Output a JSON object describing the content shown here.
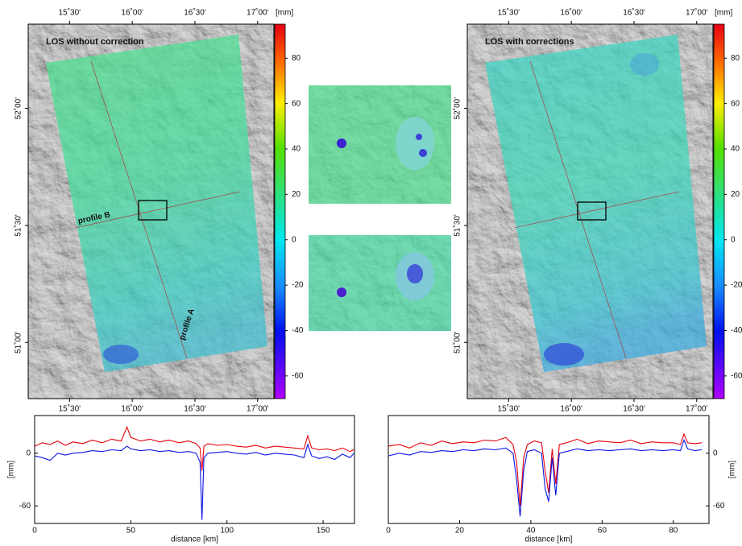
{
  "chart_data": [
    {
      "type": "map",
      "title": "LOS without correction",
      "xlim": [
        15.17,
        17.13
      ],
      "xticks": [
        {
          "value": 15.5,
          "label": "15˚30'"
        },
        {
          "value": 16,
          "label": "16˚00'"
        },
        {
          "value": 16.5,
          "label": "16˚30'"
        },
        {
          "value": 17,
          "label": "17˚00'"
        }
      ],
      "ylim": [
        50.76,
        52.36
      ],
      "yticks": [
        {
          "value": 52,
          "label": "52˚00'"
        },
        {
          "value": 51.5,
          "label": "51˚30'"
        },
        {
          "value": 51,
          "label": "51˚00'"
        }
      ],
      "colorbar": {
        "label": "[mm]",
        "lim": [
          -70,
          95
        ],
        "ticks": [
          80,
          60,
          40,
          20,
          0,
          -20,
          -40,
          -60
        ]
      },
      "annotations": [
        "profile A",
        "profile B"
      ]
    },
    {
      "type": "map",
      "title": "LOS with corrections",
      "xlim": [
        15.17,
        17.13
      ],
      "xticks": [
        {
          "value": 15.5,
          "label": "15˚30'"
        },
        {
          "value": 16,
          "label": "16˚00'"
        },
        {
          "value": 16.5,
          "label": "16˚30'"
        },
        {
          "value": 17,
          "label": "17˚00'"
        }
      ],
      "ylim": [
        50.76,
        52.36
      ],
      "yticks": [
        {
          "value": 52,
          "label": "52˚00'"
        },
        {
          "value": 51.5,
          "label": "51˚30'"
        },
        {
          "value": 51,
          "label": "51˚00'"
        }
      ],
      "colorbar": {
        "label": "[mm]",
        "lim": [
          -70,
          95
        ],
        "ticks": [
          80,
          60,
          40,
          20,
          0,
          -20,
          -40,
          -60
        ]
      }
    },
    {
      "type": "line",
      "xlabel": "distance [km]",
      "ylabel": "[mm]",
      "xlim": [
        0,
        166.3
      ],
      "xticks": [
        0,
        50,
        100,
        150
      ],
      "ylim": [
        -80,
        43
      ],
      "yticks": [
        0,
        -60
      ],
      "x": [
        0,
        4,
        8,
        12,
        16,
        20,
        25,
        30,
        35,
        40,
        45,
        48,
        50,
        55,
        60,
        65,
        70,
        75,
        80,
        84,
        86,
        87,
        88,
        90,
        95,
        100,
        105,
        110,
        115,
        120,
        125,
        130,
        135,
        140,
        142,
        144,
        148,
        152,
        156,
        160,
        164,
        166
      ],
      "series": [
        {
          "color": "#e8000b",
          "values": [
            8,
            12,
            10,
            14,
            9,
            13,
            11,
            15,
            12,
            16,
            14,
            30,
            18,
            14,
            16,
            13,
            15,
            12,
            14,
            11,
            6,
            -20,
            8,
            11,
            9,
            10,
            8,
            7,
            9,
            6,
            8,
            7,
            6,
            5,
            20,
            6,
            4,
            5,
            3,
            6,
            2,
            4
          ]
        },
        {
          "color": "#0a14e6",
          "values": [
            -3,
            -5,
            -8,
            0,
            -2,
            0,
            1,
            3,
            2,
            4,
            3,
            8,
            5,
            3,
            4,
            2,
            3,
            1,
            2,
            0,
            -10,
            -76,
            -5,
            0,
            1,
            2,
            0,
            -1,
            1,
            -2,
            0,
            -1,
            -2,
            -5,
            10,
            -3,
            -6,
            -4,
            -7,
            -1,
            -5,
            0
          ]
        }
      ]
    },
    {
      "type": "line",
      "xlabel": "distance [km]",
      "ylabel": "[mm]",
      "xlim": [
        0,
        90
      ],
      "xticks": [
        0,
        20,
        40,
        60,
        80
      ],
      "ylim": [
        -80,
        43
      ],
      "yticks": [
        0,
        -60
      ],
      "x": [
        0,
        3,
        6,
        9,
        12,
        15,
        18,
        21,
        24,
        27,
        30,
        33,
        35,
        36,
        37,
        38,
        39,
        41,
        43,
        44,
        45,
        46,
        47,
        48,
        50,
        53,
        56,
        59,
        62,
        65,
        68,
        71,
        74,
        77,
        80,
        82,
        83,
        84,
        86,
        88
      ],
      "series": [
        {
          "color": "#e8000b",
          "values": [
            8,
            10,
            6,
            12,
            9,
            14,
            11,
            13,
            12,
            15,
            14,
            18,
            10,
            -10,
            -60,
            -5,
            10,
            14,
            12,
            -20,
            -45,
            5,
            -35,
            10,
            12,
            16,
            11,
            14,
            13,
            12,
            15,
            11,
            13,
            12,
            12,
            10,
            22,
            12,
            11,
            12
          ]
        },
        {
          "color": "#0a14e6",
          "values": [
            -3,
            0,
            -2,
            2,
            1,
            3,
            2,
            4,
            3,
            5,
            4,
            6,
            0,
            -30,
            -72,
            -20,
            2,
            4,
            0,
            -40,
            -55,
            -5,
            -48,
            0,
            2,
            5,
            3,
            4,
            3,
            4,
            5,
            3,
            4,
            3,
            4,
            3,
            15,
            5,
            3,
            4
          ]
        }
      ]
    }
  ]
}
